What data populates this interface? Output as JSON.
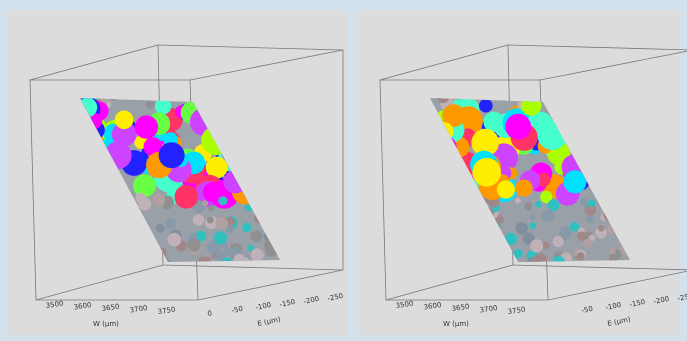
{
  "panels": [
    {
      "x_axis_label": "W (μm)",
      "x_tick_labels": [
        "3500",
        "3600",
        "3650",
        "3700",
        "3750"
      ],
      "y_axis_label": "E (μm)",
      "y_tick_labels": [
        "0",
        "-50",
        "-100",
        "-150",
        "-200",
        "-250"
      ]
    },
    {
      "x_axis_label": "W (μm)",
      "x_tick_labels": [
        "3500",
        "3600",
        "3650",
        "3700",
        "3750"
      ],
      "y_axis_label": "E (μm)",
      "y_tick_labels": [
        "-50",
        "-100",
        "-150",
        "-200",
        "-250"
      ]
    }
  ]
}
